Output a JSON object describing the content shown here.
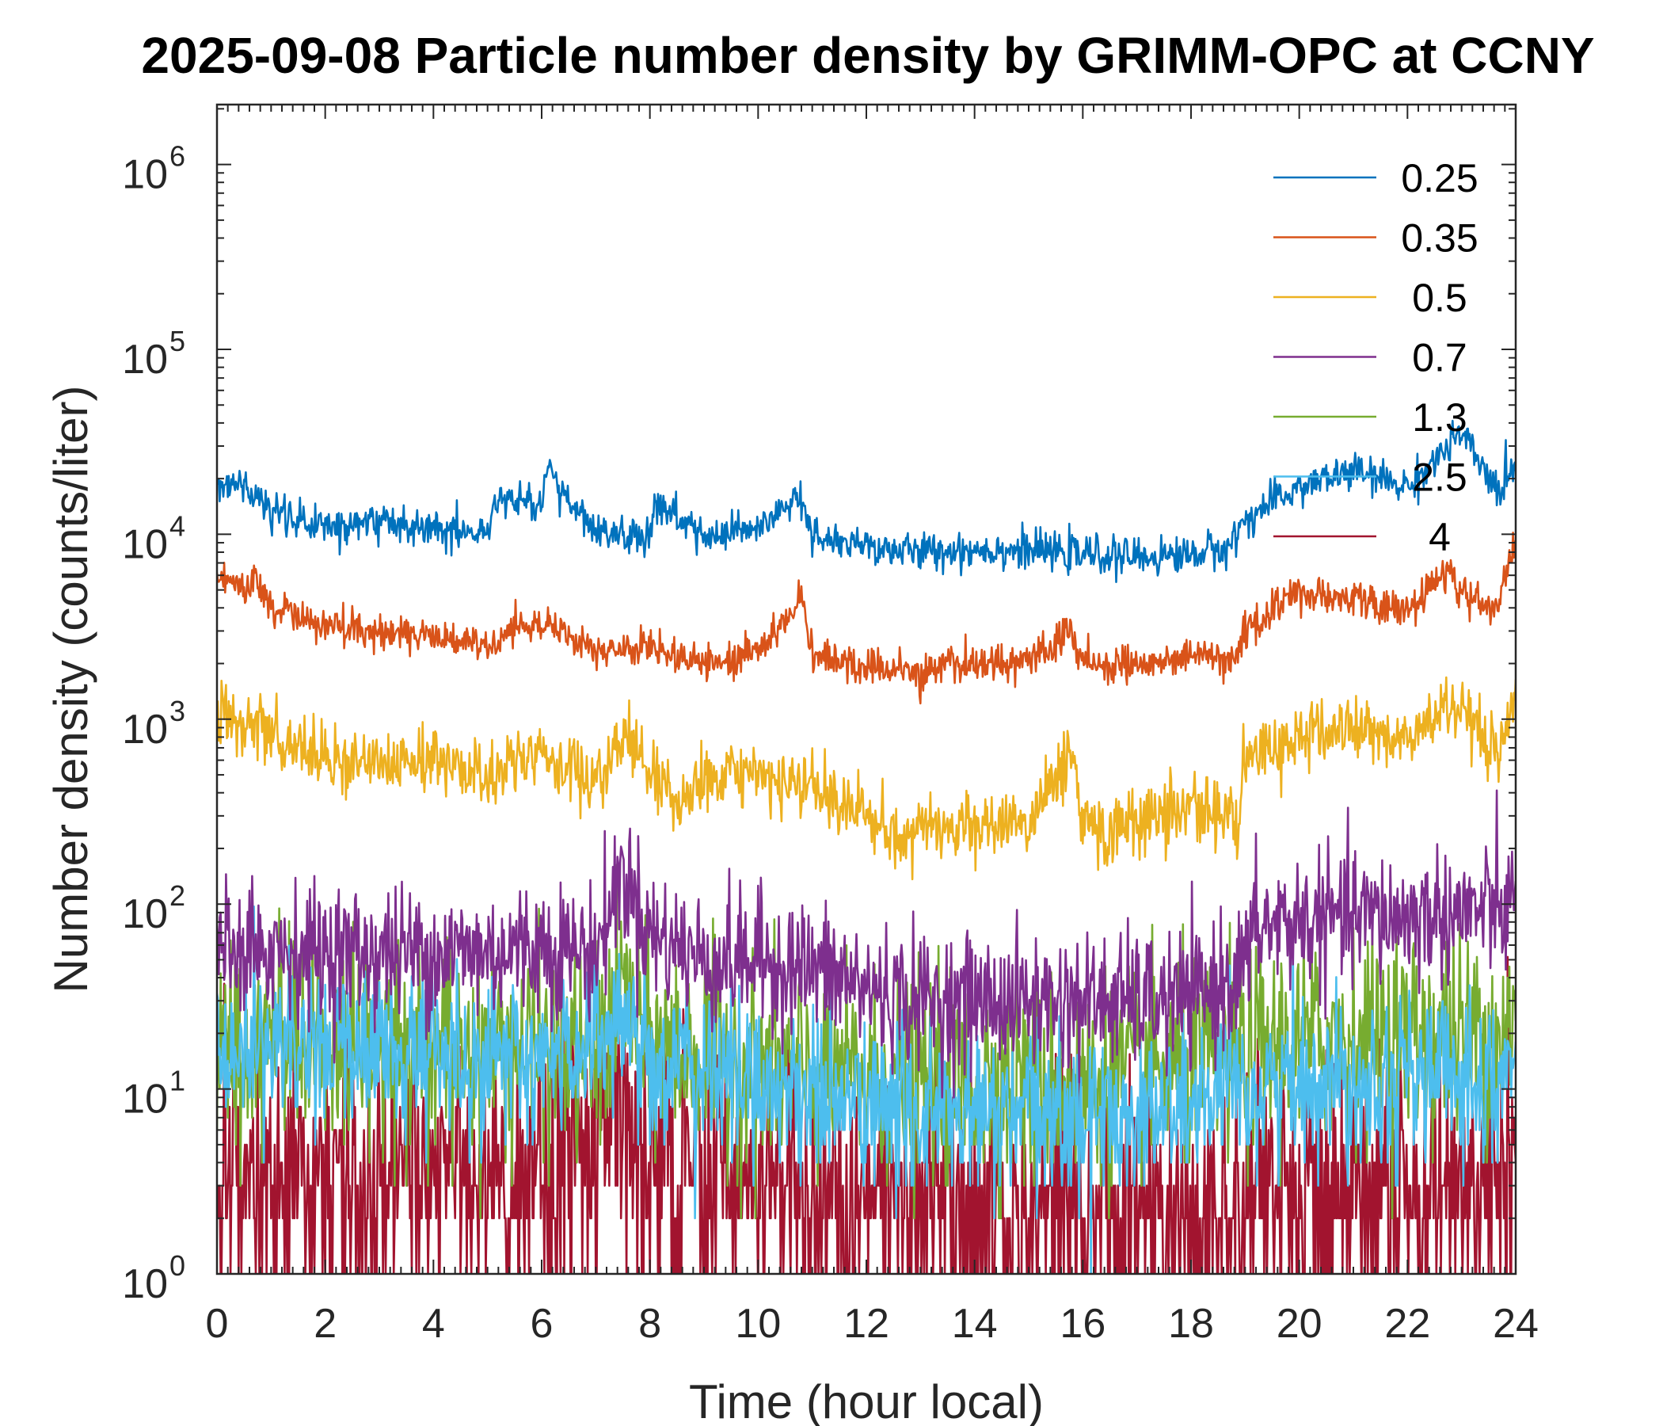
{
  "chart_data": {
    "type": "line",
    "title": "2025-09-08 Particle number density by GRIMM-OPC at CCNY",
    "xlabel": "Time (hour local)",
    "ylabel": "Number density (counts/liter)",
    "xlim": [
      0,
      24
    ],
    "ylim": [
      1,
      2000000
    ],
    "yscale": "log",
    "x_ticks": [
      0,
      2,
      4,
      6,
      8,
      10,
      12,
      14,
      16,
      18,
      20,
      22,
      24
    ],
    "x_tick_labels": [
      "0",
      "2",
      "4",
      "6",
      "8",
      "10",
      "12",
      "14",
      "16",
      "18",
      "20",
      "22",
      "24"
    ],
    "y_ticks": [
      1,
      10,
      100,
      1000,
      10000,
      100000,
      1000000
    ],
    "y_tick_labels": [
      {
        "base": "10",
        "exp": "0"
      },
      {
        "base": "10",
        "exp": "1"
      },
      {
        "base": "10",
        "exp": "2"
      },
      {
        "base": "10",
        "exp": "3"
      },
      {
        "base": "10",
        "exp": "4"
      },
      {
        "base": "10",
        "exp": "5"
      },
      {
        "base": "10",
        "exp": "6"
      }
    ],
    "legend_position": "top-right",
    "series": [
      {
        "name": "0.25",
        "color": "#0072BD",
        "noise": 0.05,
        "x": [
          0,
          0.5,
          1,
          1.5,
          2,
          3,
          4,
          5,
          5.2,
          6,
          6.1,
          7,
          8,
          8.1,
          9,
          10,
          10.8,
          11,
          12,
          13,
          14,
          15,
          16,
          17,
          18,
          18.7,
          19,
          20,
          21,
          22,
          22.5,
          23,
          23.5,
          23.7,
          24
        ],
        "y": [
          20000,
          18000,
          13500,
          11500,
          11000,
          12000,
          11000,
          10000,
          16000,
          14000,
          22000,
          10000,
          9500,
          15000,
          9500,
          10500,
          16000,
          9500,
          8500,
          8000,
          8300,
          8200,
          7800,
          7500,
          7800,
          8500,
          12000,
          18000,
          22000,
          18000,
          25000,
          35000,
          20000,
          17000,
          25000
        ]
      },
      {
        "name": "0.35",
        "color": "#D95319",
        "noise": 0.05,
        "x": [
          0,
          0.5,
          0.7,
          1,
          2,
          3,
          4,
          5,
          6,
          7,
          8,
          9,
          10,
          10.8,
          11,
          12,
          13,
          14,
          15,
          15.8,
          16,
          17,
          18,
          18.8,
          19,
          20,
          21,
          22,
          22.8,
          23,
          23.6,
          24
        ],
        "y": [
          6000,
          5000,
          6200,
          4000,
          3100,
          3000,
          2800,
          2500,
          3500,
          2200,
          2500,
          2000,
          2300,
          4500,
          2200,
          1900,
          1800,
          2000,
          2100,
          3000,
          2000,
          2000,
          2100,
          2300,
          3000,
          4800,
          4500,
          3800,
          6500,
          4800,
          3800,
          9000
        ]
      },
      {
        "name": "0.5",
        "color": "#EDB120",
        "noise": 0.09,
        "x": [
          0,
          0.5,
          0.7,
          1,
          2,
          3,
          4,
          5,
          6,
          7,
          7.5,
          8,
          8.5,
          9,
          10,
          11,
          12,
          12.8,
          13,
          14,
          15,
          15.8,
          16,
          17,
          18,
          18.9,
          19,
          20,
          21,
          22,
          22.8,
          23,
          23.7,
          24
        ],
        "y": [
          1100,
          850,
          1100,
          750,
          620,
          620,
          600,
          480,
          650,
          430,
          800,
          520,
          350,
          450,
          500,
          400,
          300,
          220,
          280,
          250,
          280,
          700,
          250,
          280,
          350,
          280,
          600,
          800,
          900,
          750,
          1250,
          1000,
          600,
          1200
        ]
      },
      {
        "name": "0.7",
        "color": "#7E2F8E",
        "noise": 0.18,
        "x": [
          0,
          1,
          2,
          3,
          4,
          5,
          6,
          7,
          7.5,
          8,
          9,
          10,
          11,
          12,
          13,
          14,
          15,
          16,
          17,
          18,
          19,
          19.2,
          20,
          21,
          22,
          23,
          24
        ],
        "y": [
          65,
          60,
          55,
          55,
          55,
          55,
          60,
          55,
          150,
          70,
          50,
          50,
          45,
          35,
          30,
          30,
          30,
          30,
          30,
          30,
          45,
          75,
          80,
          85,
          85,
          90,
          95
        ]
      },
      {
        "name": "1.3",
        "color": "#77AC30",
        "noise": 0.28,
        "x": [
          0,
          2,
          4,
          6,
          7,
          7.5,
          8,
          10,
          12,
          14,
          16,
          18,
          20,
          22,
          24
        ],
        "y": [
          18,
          18,
          17,
          16,
          14,
          35,
          17,
          13,
          11,
          11,
          11,
          13,
          18,
          20,
          20
        ]
      },
      {
        "name": "2.5",
        "color": "#4DBEEE",
        "noise": 0.22,
        "x": [
          0,
          2,
          4,
          6,
          7.5,
          8,
          10,
          12,
          14,
          16,
          18,
          20,
          22,
          24
        ],
        "y": [
          18,
          17,
          16,
          13,
          25,
          14,
          11,
          8,
          7,
          7,
          8,
          11,
          12,
          12
        ]
      },
      {
        "name": "4",
        "color": "#A2142F",
        "noise": 0.35,
        "x": [
          0,
          2,
          4,
          6,
          7.5,
          8,
          10,
          12,
          14,
          16,
          18,
          20,
          22,
          24
        ],
        "y": [
          4,
          3.5,
          3.5,
          3.5,
          8,
          4,
          3,
          2.5,
          2,
          2,
          2,
          2.5,
          3,
          3
        ]
      }
    ]
  }
}
